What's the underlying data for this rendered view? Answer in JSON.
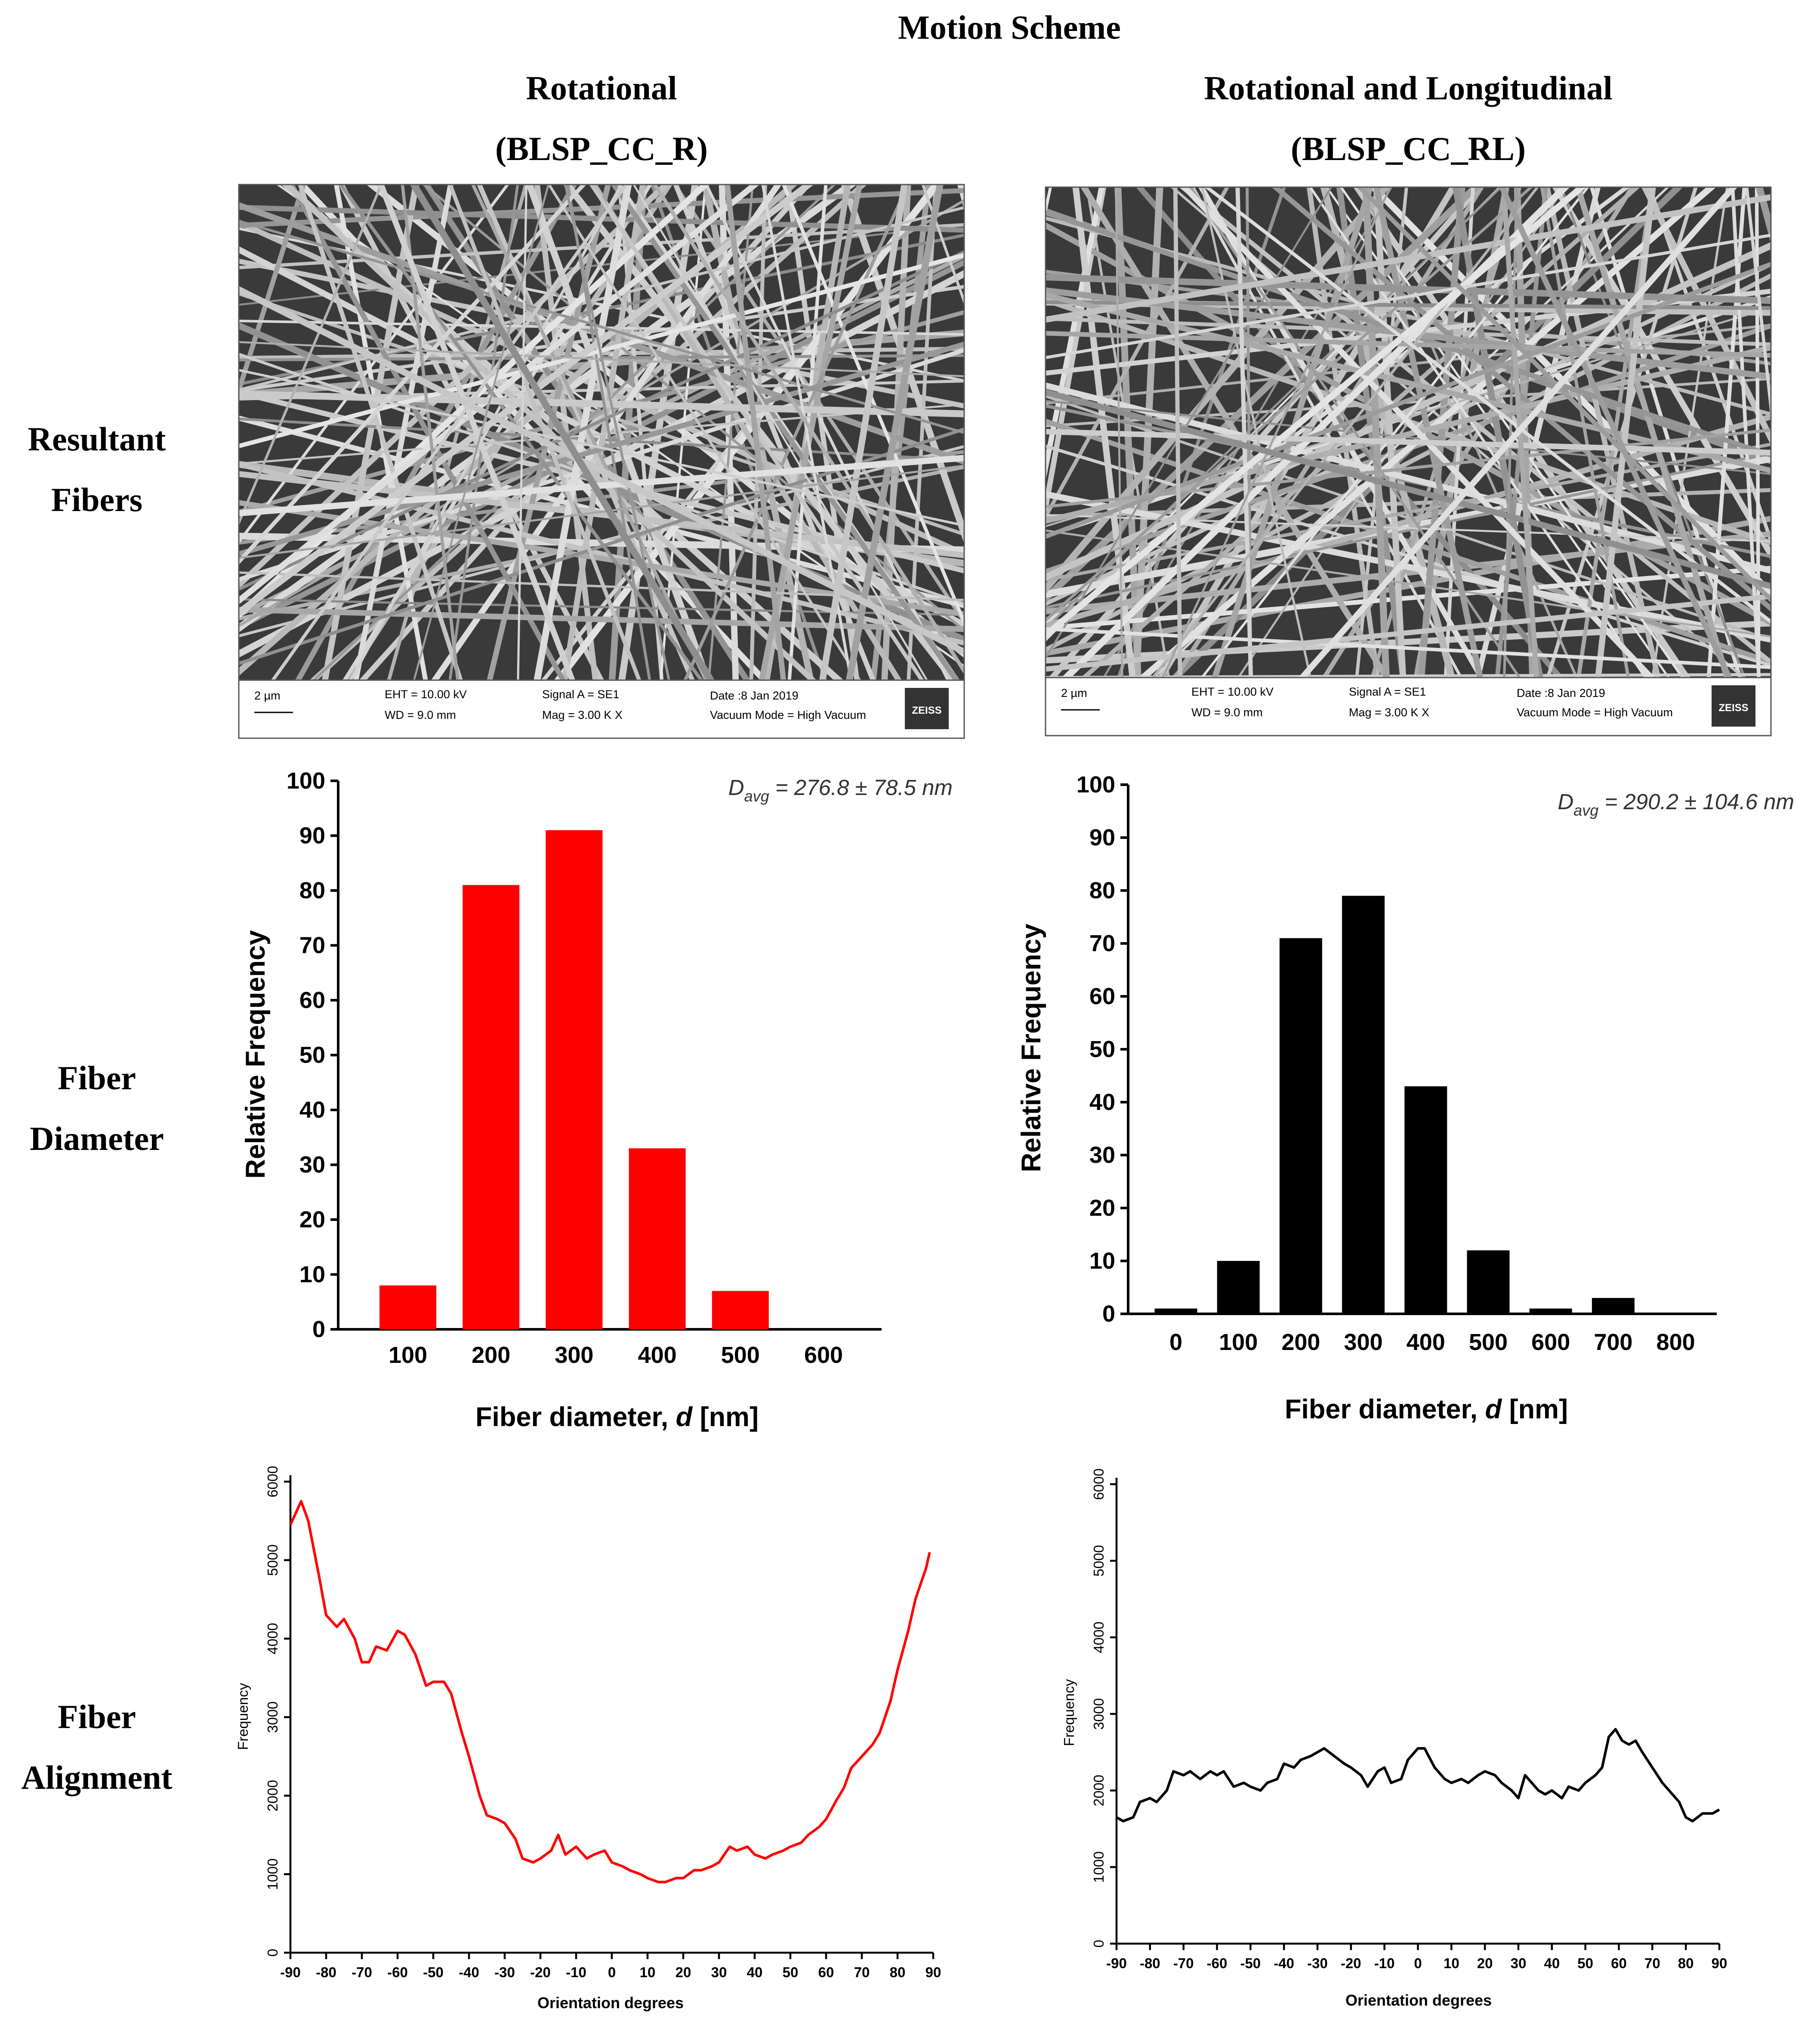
{
  "title": "Motion Scheme",
  "columns": [
    {
      "name": "Rotational",
      "code": "(BLSP_CC_R)"
    },
    {
      "name": "Rotational and Longitudinal",
      "code": "(BLSP_CC_RL)"
    }
  ],
  "rows": [
    [
      "Resultant",
      "Fibers"
    ],
    [
      "Fiber",
      "Diameter"
    ],
    [
      "Fiber",
      "Alignment"
    ]
  ],
  "sem_images": [
    {
      "scale": "2 µm",
      "eht": "EHT = 10.00 kV",
      "wd": "WD = 9.0 mm",
      "signal": "Signal A = SE1",
      "mag": "Mag =    3.00 K X",
      "date": "Date :8 Jan 2019",
      "vacuum": "Vacuum Mode = High Vacuum",
      "brand": "ZEISS"
    },
    {
      "scale": "2 µm",
      "eht": "EHT = 10.00 kV",
      "wd": "WD = 9.0 mm",
      "signal": "Signal A = SE1",
      "mag": "Mag =    3.00 K X",
      "date": "Date :8 Jan 2019",
      "vacuum": "Vacuum Mode = High Vacuum",
      "brand": "ZEISS"
    }
  ],
  "chart_data": [
    {
      "type": "bar",
      "color": "#ff0000",
      "annotation": {
        "symbol": "D",
        "subscript": "avg",
        "text": " = 276.8 ± 78.5 nm"
      },
      "xlabel": [
        "Fiber diameter, ",
        "d",
        " [nm]"
      ],
      "ylabel": "Relative Frequency",
      "categories": [
        "100",
        "200",
        "300",
        "400",
        "500",
        "600"
      ],
      "values": [
        8,
        81,
        91,
        33,
        7,
        0
      ],
      "ylim": [
        0,
        100
      ],
      "yticks": [
        0,
        10,
        20,
        30,
        40,
        50,
        60,
        70,
        80,
        90,
        100
      ]
    },
    {
      "type": "bar",
      "color": "#000000",
      "annotation": {
        "symbol": "D",
        "subscript": "avg",
        "text": " = 290.2 ± 104.6 nm"
      },
      "xlabel": [
        "Fiber diameter, ",
        "d",
        " [nm]"
      ],
      "ylabel": "Relative Frequency",
      "categories": [
        "0",
        "100",
        "200",
        "300",
        "400",
        "500",
        "600",
        "700",
        "800"
      ],
      "values": [
        1,
        10,
        71,
        79,
        43,
        12,
        1,
        3,
        0
      ],
      "ylim": [
        0,
        100
      ],
      "yticks": [
        0,
        10,
        20,
        30,
        40,
        50,
        60,
        70,
        80,
        90,
        100
      ]
    },
    {
      "type": "line",
      "color": "#ff0000",
      "xlabel": [
        "Orientation degrees"
      ],
      "ylabel": "Frequency",
      "x": [
        -90,
        -87,
        -85,
        -82,
        -80,
        -77,
        -75,
        -72,
        -70,
        -68,
        -66,
        -63,
        -60,
        -58,
        -55,
        -52,
        -50,
        -47,
        -45,
        -42,
        -40,
        -37,
        -35,
        -32,
        -30,
        -27,
        -25,
        -22,
        -20,
        -17,
        -15,
        -13,
        -10,
        -7,
        -5,
        -2,
        0,
        3,
        5,
        8,
        10,
        13,
        15,
        18,
        20,
        23,
        25,
        28,
        30,
        33,
        35,
        38,
        40,
        43,
        45,
        48,
        50,
        53,
        55,
        58,
        60,
        63,
        65,
        67,
        70,
        73,
        75,
        78,
        80,
        83,
        85,
        88,
        89
      ],
      "values": [
        5450,
        5750,
        5500,
        4800,
        4300,
        4150,
        4250,
        4000,
        3700,
        3700,
        3900,
        3850,
        4100,
        4050,
        3800,
        3400,
        3450,
        3450,
        3300,
        2800,
        2500,
        2000,
        1750,
        1700,
        1650,
        1450,
        1200,
        1150,
        1200,
        1300,
        1500,
        1250,
        1350,
        1200,
        1250,
        1300,
        1150,
        1100,
        1050,
        1000,
        950,
        900,
        900,
        950,
        950,
        1050,
        1050,
        1100,
        1150,
        1350,
        1300,
        1350,
        1250,
        1200,
        1250,
        1300,
        1350,
        1400,
        1500,
        1600,
        1700,
        1950,
        2100,
        2350,
        2500,
        2650,
        2800,
        3200,
        3600,
        4100,
        4500,
        4900,
        5100
      ],
      "xlim": [
        -90,
        90
      ],
      "xticks": [
        -90,
        -80,
        -70,
        -60,
        -50,
        -40,
        -30,
        -20,
        -10,
        0,
        10,
        20,
        30,
        40,
        50,
        60,
        70,
        80,
        90
      ],
      "ylim": [
        0,
        6000
      ],
      "yticks": [
        0,
        1000,
        2000,
        3000,
        4000,
        5000,
        6000
      ]
    },
    {
      "type": "line",
      "color": "#000000",
      "xlabel": [
        "Orientation degrees"
      ],
      "ylabel": "Frequency",
      "x": [
        -90,
        -88,
        -85,
        -83,
        -80,
        -78,
        -75,
        -73,
        -70,
        -68,
        -65,
        -62,
        -60,
        -58,
        -55,
        -52,
        -50,
        -47,
        -45,
        -42,
        -40,
        -37,
        -35,
        -32,
        -30,
        -28,
        -25,
        -22,
        -20,
        -17,
        -15,
        -12,
        -10,
        -8,
        -5,
        -3,
        0,
        2,
        5,
        8,
        10,
        13,
        15,
        18,
        20,
        23,
        25,
        28,
        30,
        32,
        34,
        36,
        38,
        40,
        43,
        45,
        48,
        50,
        53,
        55,
        57,
        59,
        61,
        63,
        65,
        67,
        70,
        73,
        75,
        78,
        80,
        82,
        85,
        88,
        90
      ],
      "values": [
        1650,
        1600,
        1650,
        1850,
        1900,
        1850,
        2000,
        2250,
        2200,
        2250,
        2150,
        2250,
        2200,
        2250,
        2050,
        2100,
        2050,
        2000,
        2100,
        2150,
        2350,
        2300,
        2400,
        2450,
        2500,
        2550,
        2450,
        2350,
        2300,
        2200,
        2050,
        2250,
        2300,
        2100,
        2150,
        2400,
        2550,
        2550,
        2300,
        2150,
        2100,
        2150,
        2100,
        2200,
        2250,
        2200,
        2100,
        2000,
        1900,
        2200,
        2100,
        2000,
        1950,
        2000,
        1900,
        2050,
        2000,
        2100,
        2200,
        2300,
        2700,
        2800,
        2650,
        2600,
        2650,
        2500,
        2300,
        2100,
        2000,
        1850,
        1650,
        1600,
        1700,
        1700,
        1750
      ],
      "xlim": [
        -90,
        90
      ],
      "xticks": [
        -90,
        -80,
        -70,
        -60,
        -50,
        -40,
        -30,
        -20,
        -10,
        0,
        10,
        20,
        30,
        40,
        50,
        60,
        70,
        80,
        90
      ],
      "ylim": [
        0,
        6000
      ],
      "yticks": [
        0,
        1000,
        2000,
        3000,
        4000,
        5000,
        6000
      ]
    }
  ]
}
